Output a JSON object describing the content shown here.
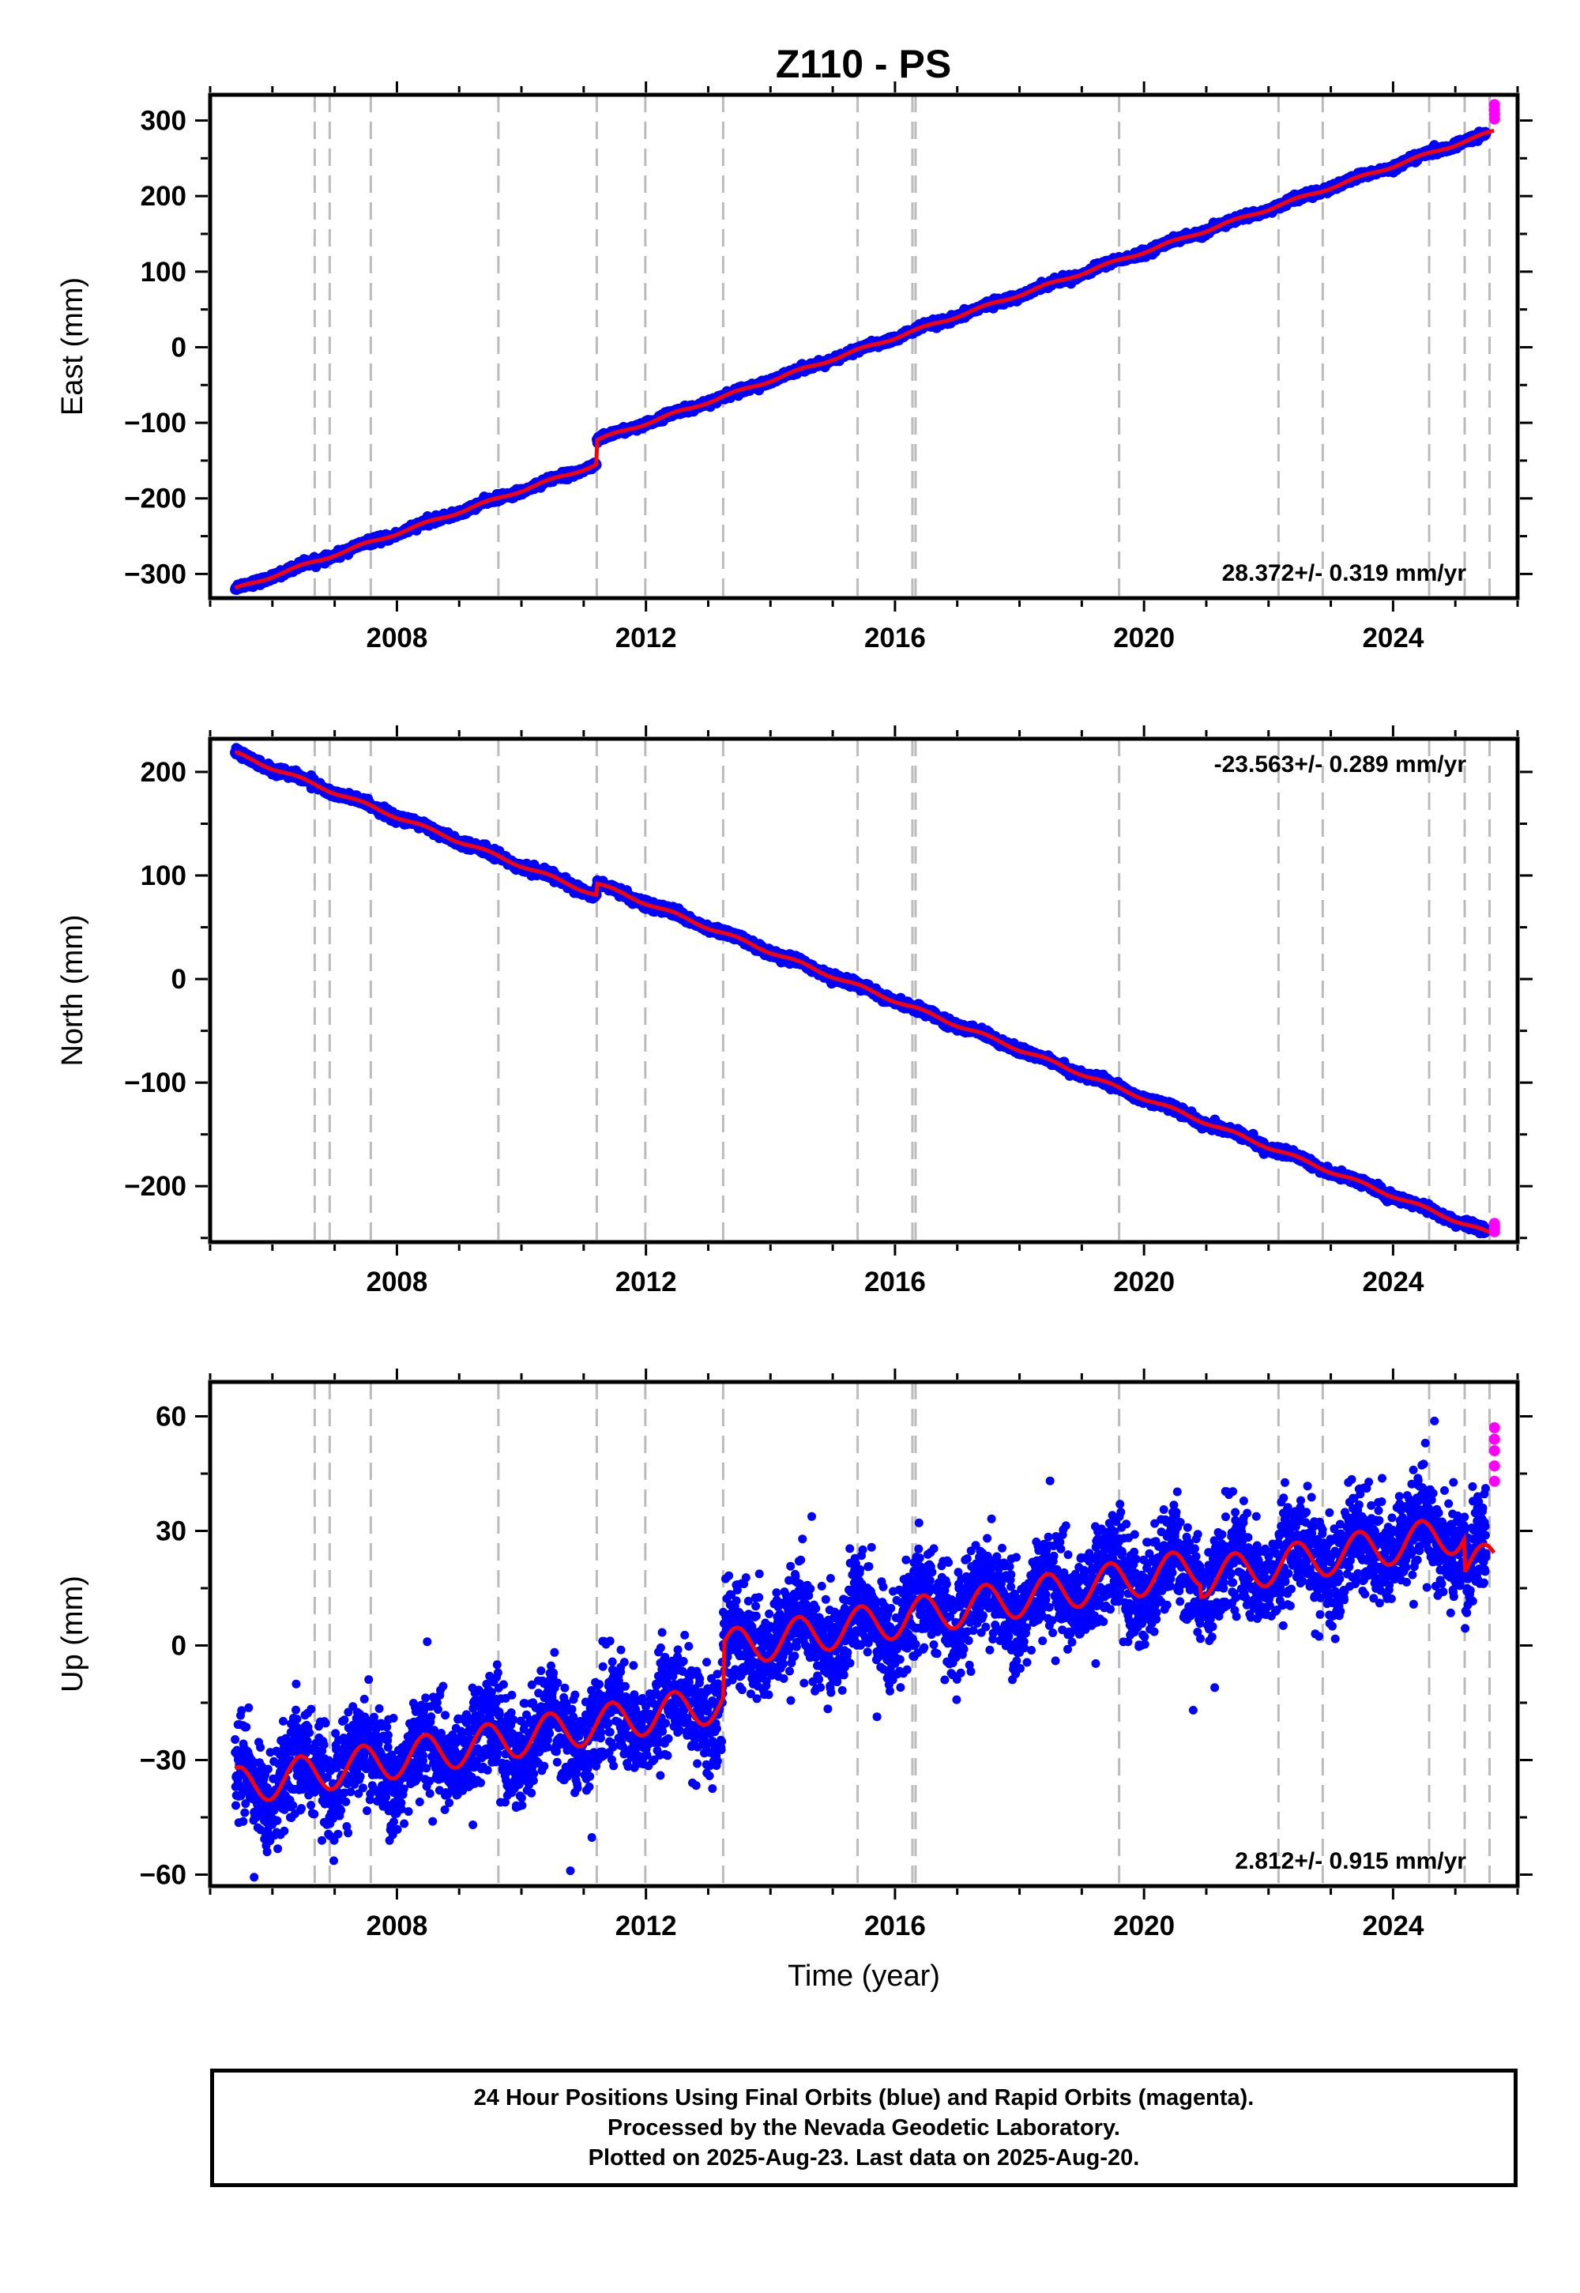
{
  "title": "Z110 - PS",
  "colors": {
    "final": "#0000ff",
    "rapid": "#ff00ff",
    "model": "#ff0000",
    "event": "#bbbbbb",
    "frame": "#000000"
  },
  "events": [
    2006.68,
    2006.92,
    2007.58,
    2009.63,
    2011.21,
    2011.99,
    2013.24,
    2015.4,
    2016.28,
    2016.33,
    2019.6,
    2022.16,
    2022.87,
    2024.58,
    2025.15,
    2025.55
  ],
  "chart_data": [
    {
      "type": "scatter",
      "name": "east",
      "ylabel": "East (mm)",
      "xlabel": "",
      "xlim": [
        2005.0,
        2026.0
      ],
      "ylim": [
        -332,
        334
      ],
      "xticks": [
        "2008",
        "2012",
        "2016",
        "2020",
        "2024"
      ],
      "yticks": [
        -300,
        -200,
        -100,
        0,
        100,
        200,
        300
      ],
      "rate_text": "28.372+/- 0.319 mm/yr",
      "rate_pos": "bottom-right",
      "start_x": 2005.4,
      "end_x": 2025.63,
      "start_y": -320,
      "rate": 28.372,
      "noise": 2.2,
      "seasonal": 1.8,
      "offsets": [
        {
          "x": 2011.21,
          "dy": 32
        }
      ],
      "rapid_from": 2025.5,
      "end_points": [
        308,
        314,
        321,
        302
      ]
    },
    {
      "type": "scatter",
      "name": "north",
      "ylabel": "North (mm)",
      "xlabel": "",
      "xlim": [
        2005.0,
        2026.0
      ],
      "ylim": [
        -254,
        232
      ],
      "xticks": [
        "2008",
        "2012",
        "2016",
        "2020",
        "2024"
      ],
      "yticks": [
        -200,
        -100,
        0,
        100,
        200
      ],
      "rate_text": "-23.563+/- 0.289 mm/yr",
      "rate_pos": "top-right",
      "start_x": 2005.4,
      "end_x": 2025.63,
      "start_y": 218,
      "rate": -23.563,
      "noise": 2.0,
      "seasonal": 1.6,
      "offsets": [
        {
          "x": 2011.21,
          "dy": 11
        }
      ],
      "rapid_from": 2025.5,
      "end_points": [
        -236,
        -241,
        -239,
        -244
      ]
    },
    {
      "type": "scatter",
      "name": "up",
      "ylabel": "Up (mm)",
      "xlabel": "Time (year)",
      "xlim": [
        2005.0,
        2026.0
      ],
      "ylim": [
        -63,
        69
      ],
      "xticks": [
        "2008",
        "2012",
        "2016",
        "2020",
        "2024"
      ],
      "yticks": [
        -60,
        -30,
        0,
        30,
        60
      ],
      "rate_text": "2.812+/- 0.915 mm/yr",
      "rate_pos": "bottom-right",
      "start_x": 2005.4,
      "end_x": 2025.63,
      "start_y": -37,
      "rate": 2.812,
      "noise": 6.5,
      "seasonal": 5.0,
      "offsets": [
        {
          "x": 2013.24,
          "dy": 14
        },
        {
          "x": 2020.9,
          "dy": -3
        },
        {
          "x": 2025.15,
          "dy": -9
        }
      ],
      "rapid_from": 2025.5,
      "end_points": [
        57,
        54,
        51,
        47,
        43
      ]
    }
  ],
  "footer": {
    "line1": "24 Hour Positions Using Final Orbits (blue) and Rapid Orbits (magenta).",
    "line2": "Processed by the Nevada Geodetic Laboratory.",
    "line3": "Plotted on 2025-Aug-23. Last data on 2025-Aug-20."
  }
}
